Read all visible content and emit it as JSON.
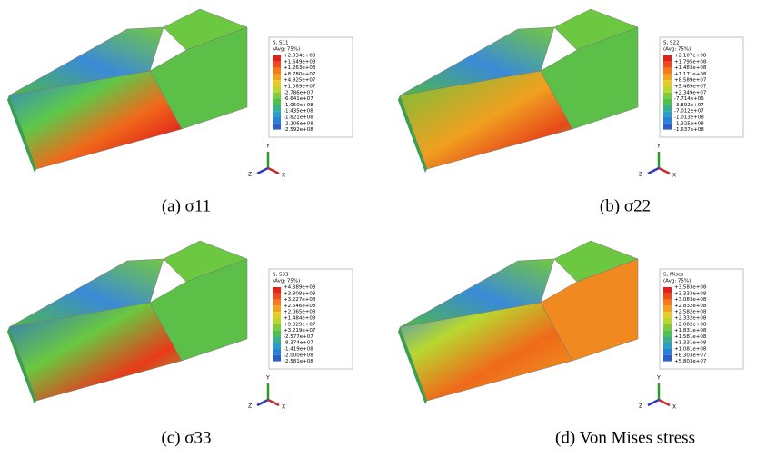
{
  "panels": [
    {
      "legend_title": "S, S11",
      "legend_subtitle": "(Avg: 75%)",
      "caption": "(a)  σ11",
      "legend_labels": [
        "+2.034e+08",
        "+1.649e+08",
        "+1.263e+08",
        "+8.780e+07",
        "+4.925e+07",
        "+1.069e+07",
        "-2.786e+07",
        "-6.641e+07",
        "-1.050e+08",
        "-1.435e+08",
        "-1.821e+08",
        "-2.206e+08",
        "-2.592e+08"
      ]
    },
    {
      "legend_title": "S, S22",
      "legend_subtitle": "(Avg: 75%)",
      "caption": "(b)  σ22",
      "legend_labels": [
        "+2.107e+08",
        "+1.795e+08",
        "+1.483e+08",
        "+1.171e+08",
        "+8.589e+07",
        "+5.469e+07",
        "+2.349e+07",
        "-7.714e+06",
        "-3.892e+07",
        "-7.012e+07",
        "-1.013e+08",
        "-1.325e+08",
        "-1.637e+08"
      ]
    },
    {
      "legend_title": "S, S33",
      "legend_subtitle": "(Avg: 75%)",
      "caption": "(c)  σ33",
      "legend_labels": [
        "+4.389e+08",
        "+3.808e+08",
        "+3.227e+08",
        "+2.646e+08",
        "+2.065e+08",
        "+1.484e+08",
        "+9.029e+07",
        "+3.219e+07",
        "-2.577e+07",
        "-8.374e+07",
        "-1.419e+08",
        "-2.000e+08",
        "-2.581e+08"
      ]
    },
    {
      "legend_title": "S, Mises",
      "legend_subtitle": "(Avg: 75%)",
      "caption": "(d)  Von Mises stress",
      "legend_labels": [
        "+3.583e+08",
        "+3.333e+08",
        "+3.083e+08",
        "+2.832e+08",
        "+2.582e+08",
        "+2.332e+08",
        "+2.082e+08",
        "+1.831e+08",
        "+1.581e+08",
        "+1.331e+08",
        "+1.081e+08",
        "+8.303e+07",
        "+5.803e+07"
      ]
    }
  ],
  "triad": [
    "Y",
    "Z",
    "X"
  ]
}
